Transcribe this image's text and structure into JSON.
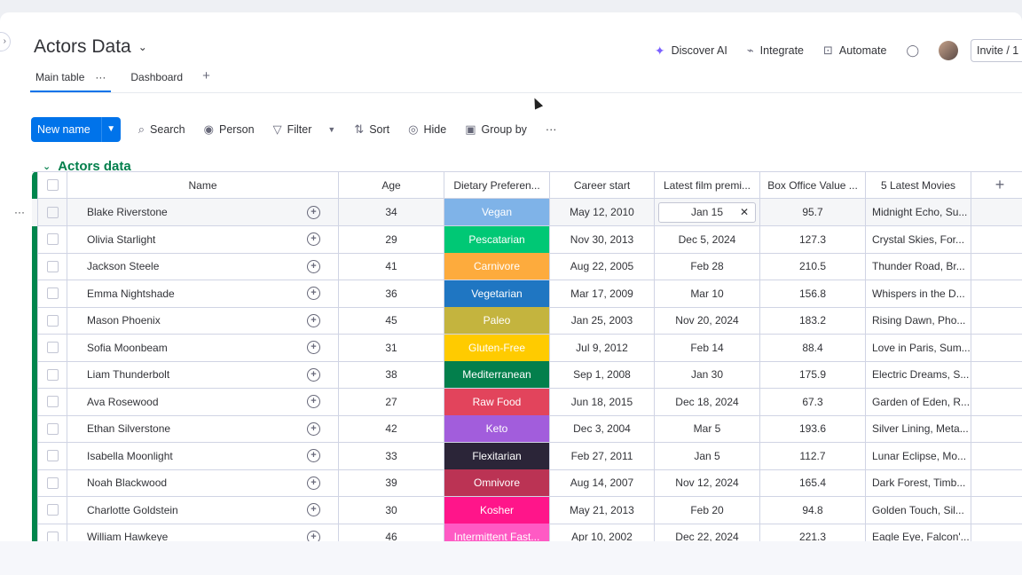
{
  "board": {
    "title": "Actors Data",
    "chev": "⌄"
  },
  "header_actions": {
    "discover_ai": "Discover AI",
    "integrate": "Integrate",
    "automate": "Automate",
    "invite": "Invite / 1"
  },
  "tabs": [
    {
      "label": "Main table",
      "more": "···"
    },
    {
      "label": "Dashboard"
    }
  ],
  "tab_add": "+",
  "toolbar": {
    "new_label": "New name",
    "search": "Search",
    "person": "Person",
    "filter": "Filter",
    "sort": "Sort",
    "hide": "Hide",
    "group_by": "Group by",
    "more": "···"
  },
  "group": {
    "title": "Actors data"
  },
  "columns": {
    "name": "Name",
    "age": "Age",
    "diet": "Dietary Preferen...",
    "career": "Career start",
    "film": "Latest film premi...",
    "box": "Box Office Value ...",
    "movies": "5 Latest Movies",
    "add": "+"
  },
  "rows": [
    {
      "name": "Blake Riverstone",
      "age": "34",
      "diet": "Vegan",
      "diet_color": "#7fb3e8",
      "career": "May 12, 2010",
      "film": "Jan 15",
      "box": "95.7",
      "movies": "Midnight Echo, Su..."
    },
    {
      "name": "Olivia Starlight",
      "age": "29",
      "diet": "Pescatarian",
      "diet_color": "#00c875",
      "career": "Nov 30, 2013",
      "film": "Dec 5, 2024",
      "box": "127.3",
      "movies": "Crystal Skies, For..."
    },
    {
      "name": "Jackson Steele",
      "age": "41",
      "diet": "Carnivore",
      "diet_color": "#fdab3d",
      "career": "Aug 22, 2005",
      "film": "Feb 28",
      "box": "210.5",
      "movies": "Thunder Road, Br..."
    },
    {
      "name": "Emma Nightshade",
      "age": "36",
      "diet": "Vegetarian",
      "diet_color": "#1f76c2",
      "career": "Mar 17, 2009",
      "film": "Mar 10",
      "box": "156.8",
      "movies": "Whispers in the D..."
    },
    {
      "name": "Mason Phoenix",
      "age": "45",
      "diet": "Paleo",
      "diet_color": "#c4b43e",
      "career": "Jan 25, 2003",
      "film": "Nov 20, 2024",
      "box": "183.2",
      "movies": "Rising Dawn, Pho..."
    },
    {
      "name": "Sofia Moonbeam",
      "age": "31",
      "diet": "Gluten-Free",
      "diet_color": "#ffcb00",
      "career": "Jul 9, 2012",
      "film": "Feb 14",
      "box": "88.4",
      "movies": "Love in Paris, Sum..."
    },
    {
      "name": "Liam Thunderbolt",
      "age": "38",
      "diet": "Mediterranean",
      "diet_color": "#037f4c",
      "career": "Sep 1, 2008",
      "film": "Jan 30",
      "box": "175.9",
      "movies": "Electric Dreams, S..."
    },
    {
      "name": "Ava Rosewood",
      "age": "27",
      "diet": "Raw Food",
      "diet_color": "#e2445c",
      "career": "Jun 18, 2015",
      "film": "Dec 18, 2024",
      "box": "67.3",
      "movies": "Garden of Eden, R..."
    },
    {
      "name": "Ethan Silverstone",
      "age": "42",
      "diet": "Keto",
      "diet_color": "#a25ddc",
      "career": "Dec 3, 2004",
      "film": "Mar 5",
      "box": "193.6",
      "movies": "Silver Lining, Meta..."
    },
    {
      "name": "Isabella Moonlight",
      "age": "33",
      "diet": "Flexitarian",
      "diet_color": "#2b2538",
      "career": "Feb 27, 2011",
      "film": "Jan 5",
      "box": "112.7",
      "movies": "Lunar Eclipse, Mo..."
    },
    {
      "name": "Noah Blackwood",
      "age": "39",
      "diet": "Omnivore",
      "diet_color": "#bb3354",
      "career": "Aug 14, 2007",
      "film": "Nov 12, 2024",
      "box": "165.4",
      "movies": "Dark Forest, Timb..."
    },
    {
      "name": "Charlotte Goldstein",
      "age": "30",
      "diet": "Kosher",
      "diet_color": "#ff158a",
      "career": "May 21, 2013",
      "film": "Feb 20",
      "box": "94.8",
      "movies": "Golden Touch, Sil..."
    },
    {
      "name": "William Hawkeye",
      "age": "46",
      "diet": "Intermittent Fast...",
      "diet_color": "#ff5ac4",
      "career": "Apr 10, 2002",
      "film": "Dec 22, 2024",
      "box": "221.3",
      "movies": "Eagle Eye, Falcon'..."
    }
  ],
  "icons": {
    "ai": "sparkle-icon",
    "integrate": "plug-icon",
    "automate": "robot-icon",
    "chat": "chat-bubble-icon",
    "search": "search-icon",
    "person": "person-icon",
    "filter": "filter-icon",
    "sort": "sort-icon",
    "hide": "eye-slash-icon",
    "group_by": "group-icon",
    "conversation": "add-update-icon"
  }
}
